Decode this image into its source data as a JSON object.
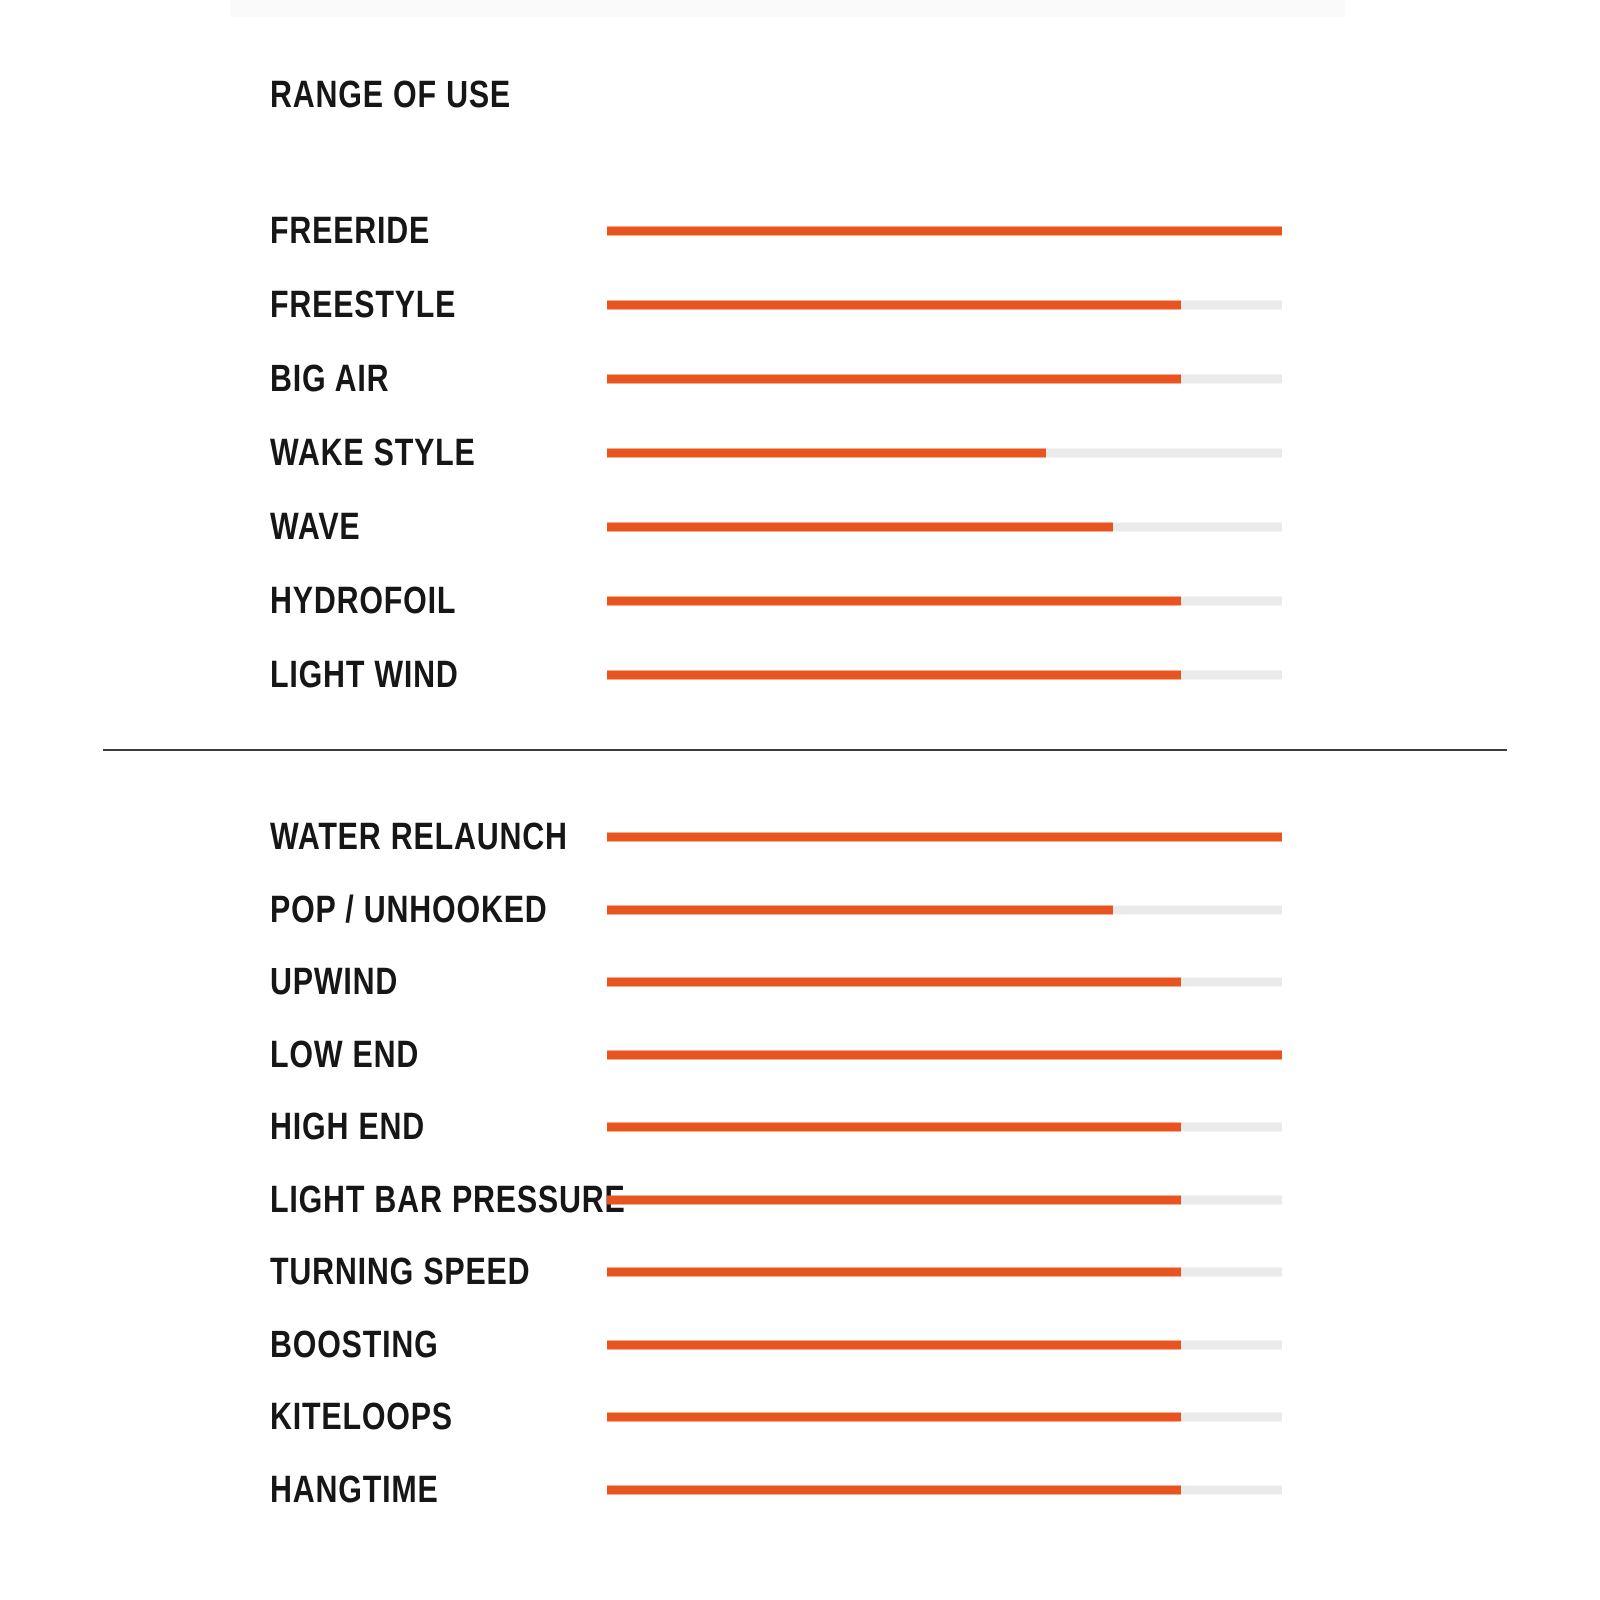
{
  "page_title": "RANGE OF USE",
  "colors": {
    "background": "#ffffff",
    "bar_fill": "#e8541f",
    "bar_track": "#eaeaea",
    "text": "#161616",
    "divider": "#3b3b3b",
    "top_band": "#fafafa"
  },
  "chart_data": {
    "type": "bar",
    "orientation": "horizontal",
    "title": "RANGE OF USE",
    "value_unit": "percent of track length",
    "xlim": [
      0,
      100
    ],
    "grid": false,
    "legend": false,
    "sections": [
      {
        "name": "riding-styles",
        "rows": [
          {
            "label": "FREERIDE",
            "value": 100
          },
          {
            "label": "FREESTYLE",
            "value": 85
          },
          {
            "label": "BIG AIR",
            "value": 85
          },
          {
            "label": "WAKE STYLE",
            "value": 65
          },
          {
            "label": "WAVE",
            "value": 75
          },
          {
            "label": "HYDROFOIL",
            "value": 85
          },
          {
            "label": "LIGHT WIND",
            "value": 85
          }
        ]
      },
      {
        "name": "performance-characteristics",
        "rows": [
          {
            "label": "WATER RELAUNCH",
            "value": 100
          },
          {
            "label": "POP / UNHOOKED",
            "value": 75
          },
          {
            "label": "UPWIND",
            "value": 85
          },
          {
            "label": "LOW END",
            "value": 100
          },
          {
            "label": "HIGH END",
            "value": 85
          },
          {
            "label": "LIGHT BAR PRESSURE",
            "value": 85
          },
          {
            "label": "TURNING SPEED",
            "value": 85
          },
          {
            "label": "BOOSTING",
            "value": 85
          },
          {
            "label": "KITELOOPS",
            "value": 85
          },
          {
            "label": "HANGTIME",
            "value": 85
          }
        ]
      }
    ]
  }
}
